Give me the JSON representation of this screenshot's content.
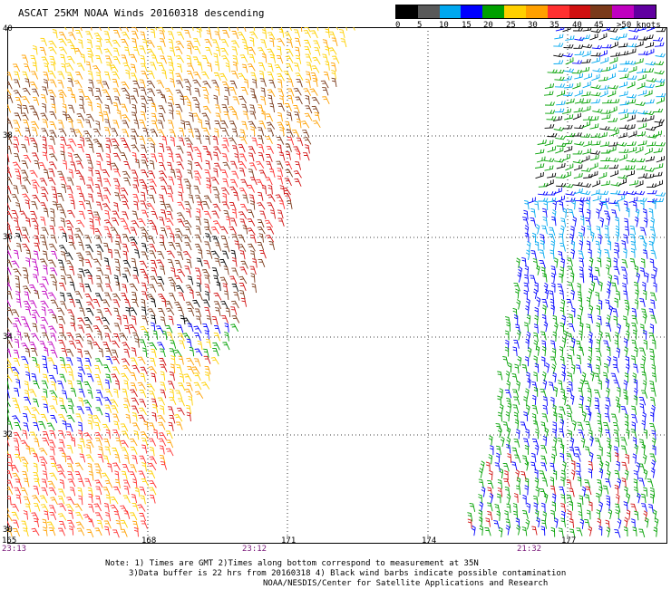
{
  "title": "ASCAT 25KM NOAA Winds 20160318 descending",
  "legend": {
    "colors": [
      "#000000",
      "#595959",
      "#00a8f0",
      "#0000ff",
      "#00a000",
      "#ffd000",
      "#ffa000",
      "#ff3030",
      "#d01010",
      "#7a3a1a",
      "#c000c0",
      "#6000a0"
    ],
    "ticks": [
      "0",
      "5",
      "10",
      "15",
      "20",
      "25",
      "30",
      "35",
      "40",
      "45",
      ">50 knots"
    ],
    "tick_positions": []
  },
  "axes": {
    "lat_labels": [
      "40",
      "38",
      "36",
      "34",
      "32",
      "30"
    ],
    "lon_labels": [
      "165",
      "168",
      "171",
      "174",
      "177"
    ]
  },
  "pass_times": [
    "23:13",
    "23:12",
    "21:32"
  ],
  "notes": [
    "Note: 1) Times are GMT 2)Times along bottom correspond to measurement at 35N",
    "3)Data buffer is 22 hrs from 20160318 4) Black wind barbs indicate possible contamination",
    "NOAA/NESDIS/Center for Satellite Applications and Research"
  ]
}
